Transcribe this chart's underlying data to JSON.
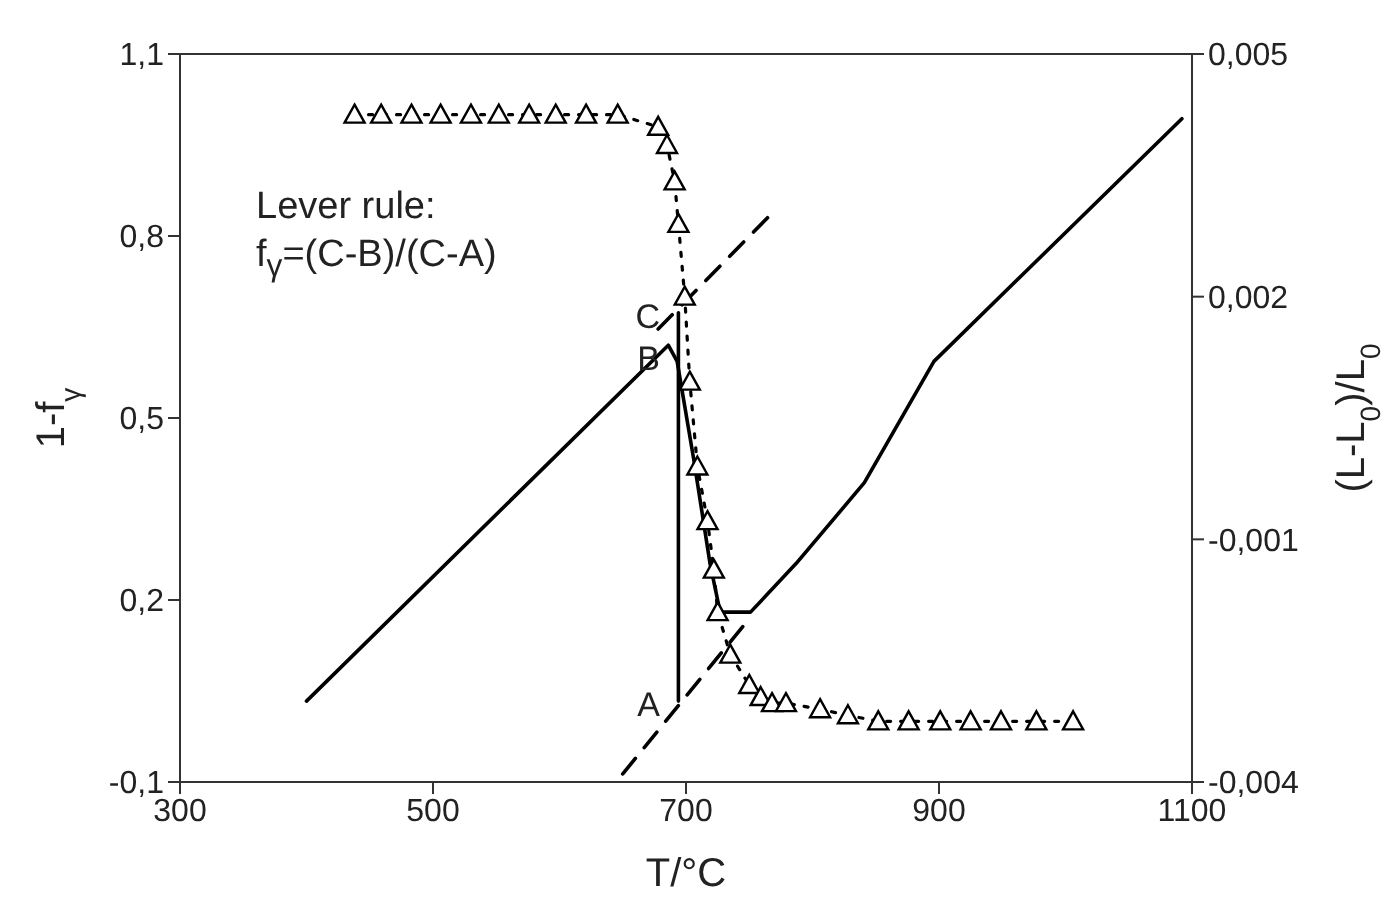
{
  "chart_data": {
    "type": "line",
    "xlabel": "T/°C",
    "ylabel": "1-f$_{γ}$",
    "y2label": "(L-L$_{0}$)/L$_{0}$",
    "xlim": [
      300,
      1100
    ],
    "xticks": [
      300,
      500,
      700,
      900,
      1100
    ],
    "ylim": [
      -0.1,
      1.1
    ],
    "yticks": [
      {
        "value": -0.1,
        "label": "-0,1"
      },
      {
        "value": 0.2,
        "label": "0,2"
      },
      {
        "value": 0.5,
        "label": "0,5"
      },
      {
        "value": 0.8,
        "label": "0,8"
      },
      {
        "value": 1.1,
        "label": "1,1"
      }
    ],
    "y2lim": [
      -0.004,
      0.005
    ],
    "y2ticks": [
      {
        "value": -0.004,
        "label": "-0,004"
      },
      {
        "value": -0.001,
        "label": "-0,001"
      },
      {
        "value": 0.002,
        "label": "0,002"
      },
      {
        "value": 0.005,
        "label": "0,005"
      }
    ],
    "series": [
      {
        "axis": "y",
        "color": "#000000",
        "line_style": "dotted",
        "marker": "triangle",
        "x": [
          438,
          459,
          483,
          506,
          530,
          552,
          576,
          597,
          621,
          646,
          678,
          685,
          691,
          694,
          699,
          703,
          709,
          717,
          722,
          725,
          735,
          750,
          759,
          768,
          779,
          806,
          828,
          852,
          876,
          901,
          925,
          949,
          977,
          1006
        ],
        "values": [
          1.0,
          1.0,
          1.0,
          1.0,
          1.0,
          1.0,
          1.0,
          1.0,
          1.0,
          1.0,
          0.98,
          0.95,
          0.89,
          0.82,
          0.7,
          0.56,
          0.42,
          0.33,
          0.25,
          0.18,
          0.11,
          0.06,
          0.04,
          0.03,
          0.03,
          0.02,
          0.01,
          0,
          0,
          0,
          0,
          0,
          0,
          0
        ]
      },
      {
        "axis": "y2",
        "color": "#000000",
        "line_style": "solid",
        "marker": "none",
        "x": [
          400,
          686,
          693,
          706,
          719,
          727,
          738,
          751,
          787,
          841,
          896,
          1092
        ],
        "values": [
          -0.003,
          0.0014,
          0.0012,
          0.0,
          -0.0013,
          -0.0019,
          -0.0019,
          -0.0019,
          -0.0013,
          -0.0003,
          0.0012,
          0.0042
        ]
      },
      {
        "axis": "y2",
        "color": "#000000",
        "line_style": "solid",
        "marker": "none",
        "x": [
          694,
          694
        ],
        "values": [
          0.0018,
          -0.003
        ]
      },
      {
        "axis": "y2",
        "color": "#000000",
        "line_style": "dashed",
        "marker": "none",
        "x": [
          678,
          766
        ],
        "values": [
          0.0016,
          0.003
        ]
      },
      {
        "axis": "y2",
        "color": "#000000",
        "line_style": "dashed",
        "marker": "none",
        "x": [
          650,
          749
        ],
        "values": [
          -0.0039,
          -0.002
        ]
      }
    ],
    "annotations": [
      "Lever rule:",
      "f$_{γ}$=(C-B)/(C-A)",
      "C",
      "B",
      "A"
    ]
  }
}
